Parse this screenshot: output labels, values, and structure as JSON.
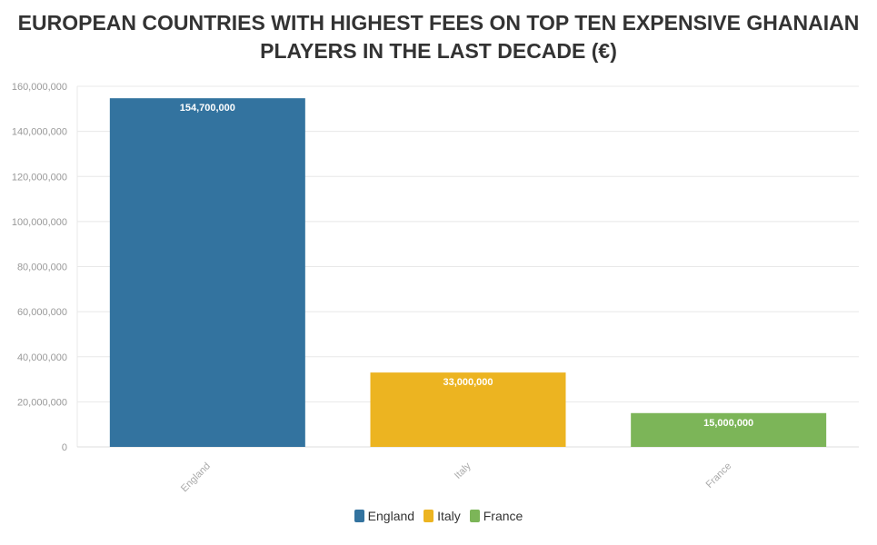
{
  "chart_data": {
    "type": "bar",
    "title": "EUROPEAN COUNTRIES WITH HIGHEST FEES ON TOP TEN EXPENSIVE GHANAIAN PLAYERS IN THE LAST DECADE (€)",
    "categories": [
      "England",
      "Italy",
      "France"
    ],
    "values": [
      154700000,
      33000000,
      15000000
    ],
    "data_labels": [
      "154,700,000",
      "33,000,000",
      "15,000,000"
    ],
    "colors": [
      "#33739f",
      "#ecb421",
      "#7cb558"
    ],
    "ylim": [
      0,
      160000000
    ],
    "yticks": [
      0,
      20000000,
      40000000,
      60000000,
      80000000,
      100000000,
      120000000,
      140000000,
      160000000
    ],
    "ytick_labels": [
      "0",
      "20,000,000",
      "40,000,000",
      "60,000,000",
      "80,000,000",
      "100,000,000",
      "120,000,000",
      "140,000,000",
      "160,000,000"
    ],
    "xlabel": "",
    "ylabel": "",
    "grid": true,
    "legend": {
      "position": "bottom-center",
      "entries": [
        "England",
        "Italy",
        "France"
      ]
    }
  }
}
